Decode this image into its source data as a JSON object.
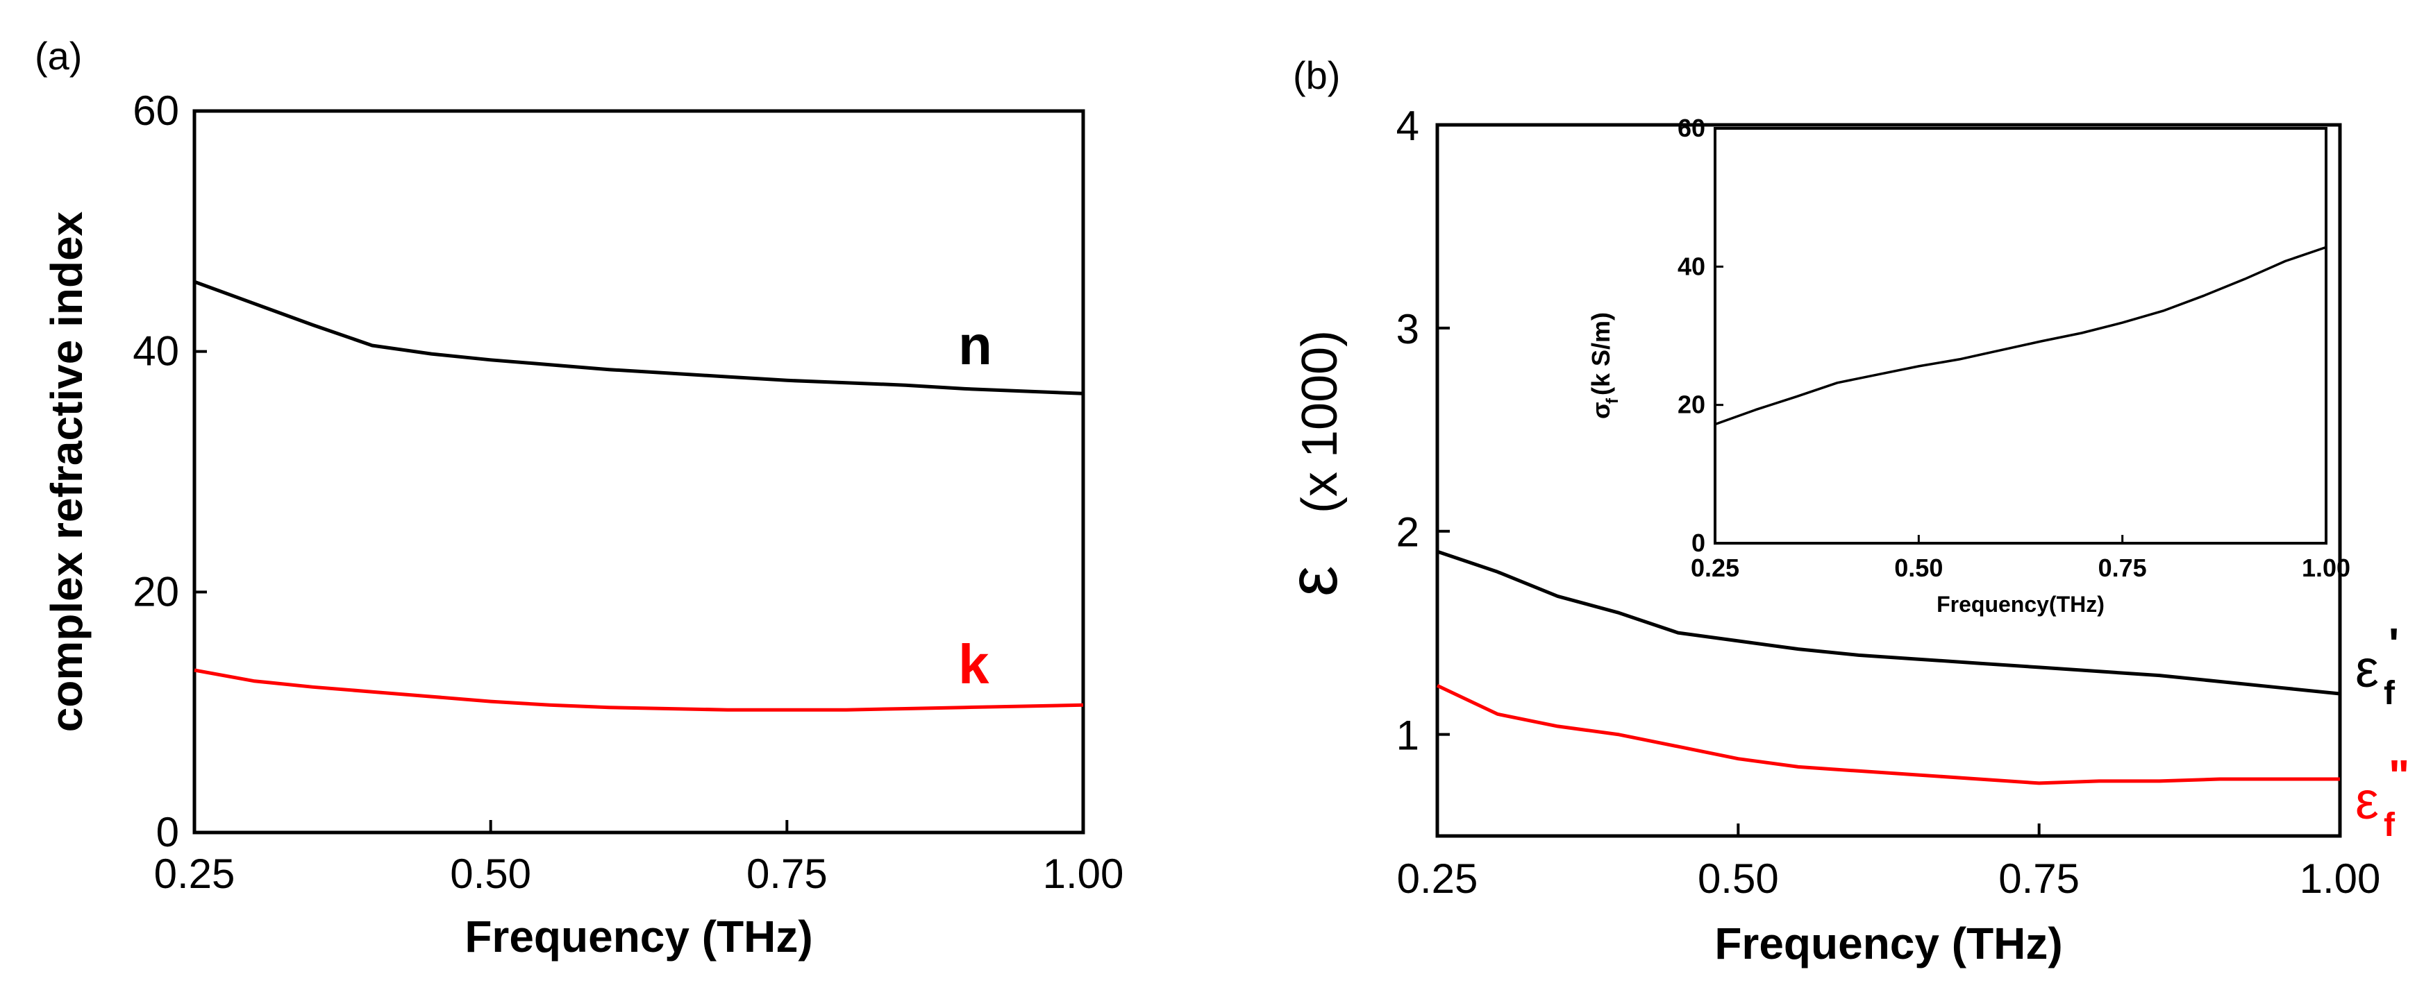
{
  "chart_data": [
    {
      "panel": "(a)",
      "type": "line",
      "xlabel": "Frequency (THz)",
      "ylabel": "complex refractive index",
      "xlim": [
        0.25,
        1.0
      ],
      "ylim": [
        0,
        60
      ],
      "xticks": [
        "0.25",
        "0.50",
        "0.75",
        "1.00"
      ],
      "yticks": [
        "0",
        "20",
        "40",
        "60"
      ],
      "series": [
        {
          "name": "n",
          "color": "#000000",
          "x": [
            0.25,
            0.3,
            0.35,
            0.4,
            0.45,
            0.5,
            0.55,
            0.6,
            0.65,
            0.7,
            0.75,
            0.8,
            0.85,
            0.9,
            0.95,
            1.0
          ],
          "y": [
            45.8,
            44.0,
            42.2,
            40.5,
            39.8,
            39.3,
            38.9,
            38.5,
            38.2,
            37.9,
            37.6,
            37.4,
            37.2,
            36.9,
            36.7,
            36.5
          ]
        },
        {
          "name": "k",
          "color": "#ff0000",
          "x": [
            0.25,
            0.3,
            0.35,
            0.4,
            0.45,
            0.5,
            0.55,
            0.6,
            0.65,
            0.7,
            0.75,
            0.8,
            0.85,
            0.9,
            0.95,
            1.0
          ],
          "y": [
            13.5,
            12.6,
            12.1,
            11.7,
            11.3,
            10.9,
            10.6,
            10.4,
            10.3,
            10.2,
            10.2,
            10.2,
            10.3,
            10.4,
            10.5,
            10.6
          ]
        }
      ]
    },
    {
      "panel": "(b)",
      "type": "line",
      "xlabel": "Frequency (THz)",
      "ylabel": "ε  (x 1000)",
      "xlim": [
        0.25,
        1.0
      ],
      "ylim": [
        0.5,
        4
      ],
      "xticks": [
        "0.25",
        "0.50",
        "0.75",
        "1.00"
      ],
      "yticks": [
        "1",
        "2",
        "3",
        "4"
      ],
      "series": [
        {
          "name": "εf'",
          "color": "#000000",
          "x": [
            0.25,
            0.3,
            0.35,
            0.4,
            0.45,
            0.5,
            0.55,
            0.6,
            0.65,
            0.7,
            0.75,
            0.8,
            0.85,
            0.9,
            0.95,
            1.0
          ],
          "y": [
            1.9,
            1.8,
            1.68,
            1.6,
            1.5,
            1.46,
            1.42,
            1.39,
            1.37,
            1.35,
            1.33,
            1.31,
            1.29,
            1.26,
            1.23,
            1.2
          ]
        },
        {
          "name": "εf\"",
          "color": "#ff0000",
          "x": [
            0.25,
            0.3,
            0.35,
            0.4,
            0.45,
            0.5,
            0.55,
            0.6,
            0.65,
            0.7,
            0.75,
            0.8,
            0.85,
            0.9,
            0.95,
            1.0
          ],
          "y": [
            1.24,
            1.1,
            1.04,
            1.0,
            0.94,
            0.88,
            0.84,
            0.82,
            0.8,
            0.78,
            0.76,
            0.77,
            0.77,
            0.78,
            0.78,
            0.78
          ]
        }
      ]
    },
    {
      "panel": "(b) inset",
      "type": "line",
      "xlabel": "Frequency(THz)",
      "ylabel": "σf(k S/m)",
      "xlim": [
        0.25,
        1.0
      ],
      "ylim": [
        0,
        60
      ],
      "xticks": [
        "0.25",
        "0.50",
        "0.75",
        "1.00"
      ],
      "yticks": [
        "0",
        "20",
        "40",
        "60"
      ],
      "series": [
        {
          "name": "σf",
          "color": "#000000",
          "x": [
            0.25,
            0.3,
            0.35,
            0.4,
            0.45,
            0.5,
            0.55,
            0.6,
            0.65,
            0.7,
            0.75,
            0.8,
            0.85,
            0.9,
            0.95,
            1.0
          ],
          "y": [
            17.2,
            19.3,
            21.2,
            23.2,
            24.4,
            25.6,
            26.6,
            27.9,
            29.2,
            30.4,
            31.9,
            33.6,
            35.8,
            38.2,
            40.8,
            42.8
          ]
        }
      ]
    }
  ],
  "labels": {
    "panel_a": "(a)",
    "panel_b": "(b)",
    "n": "n",
    "k": "k",
    "eps_symbol": "ε",
    "eps_sub": "f",
    "eps_prime": "'",
    "eps_dprime": "\"",
    "sigma_symbol": "σ",
    "sigma_sub": "f",
    "sigma_rest": "(k S/m)",
    "b_ylabel_rest": "(x 1000)"
  }
}
